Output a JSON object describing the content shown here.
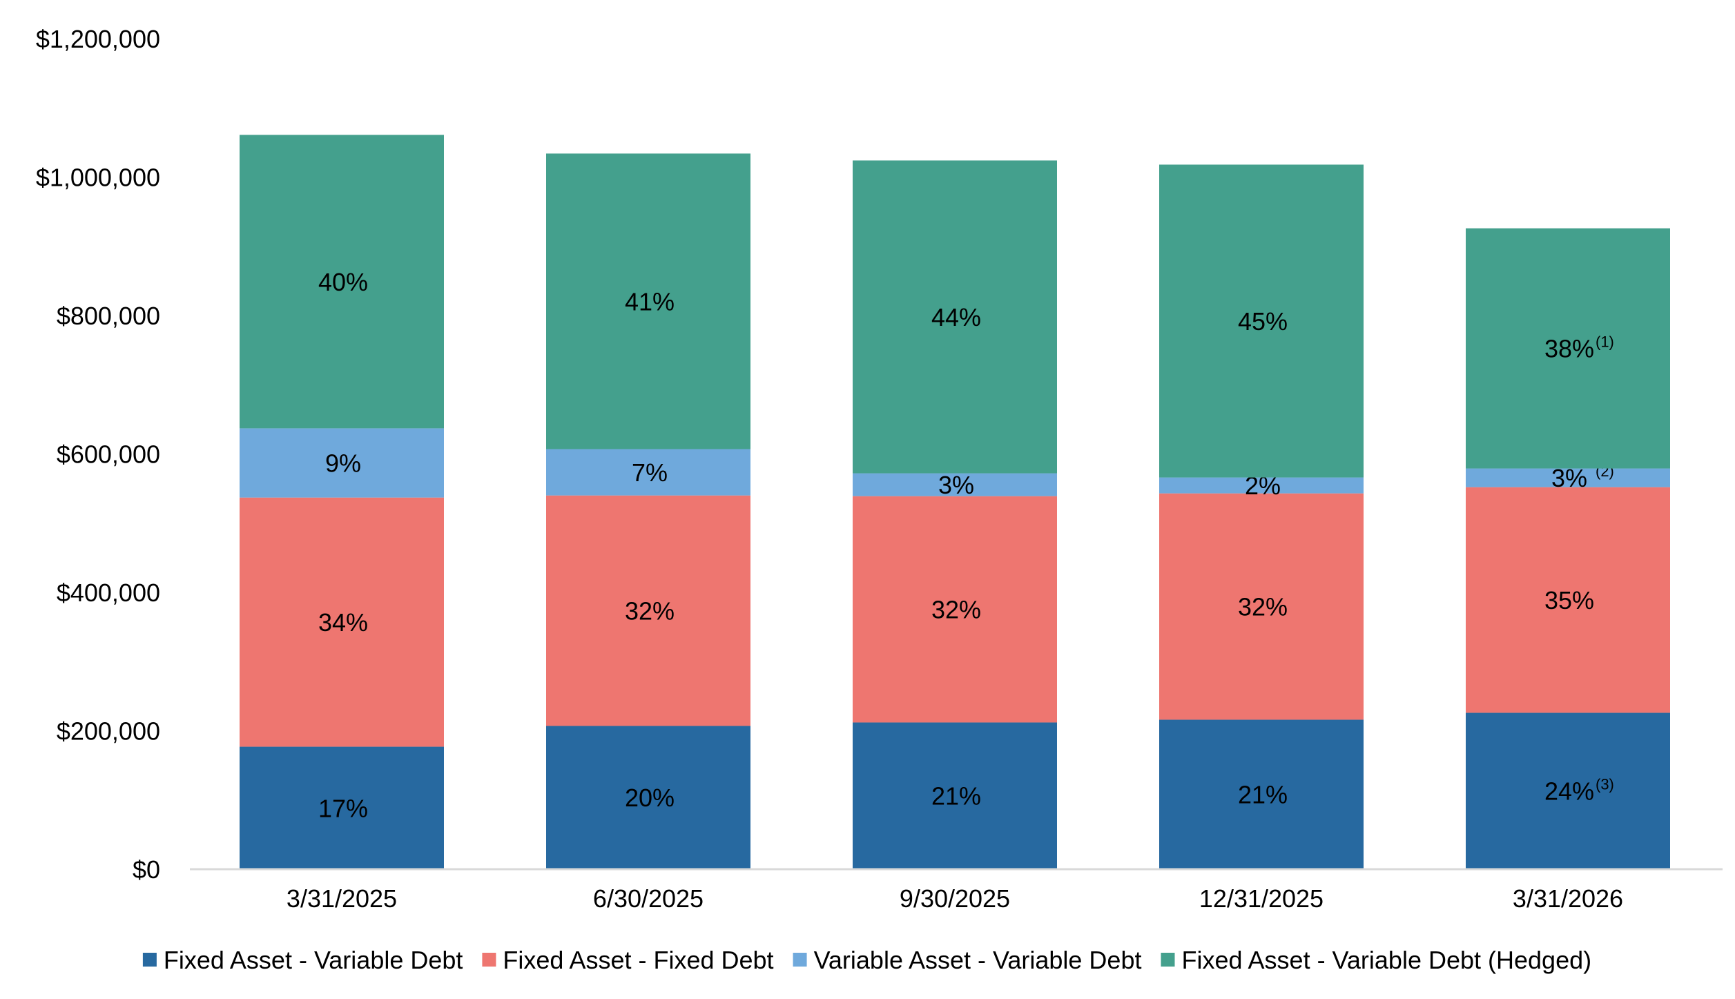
{
  "chart_data": {
    "type": "bar",
    "stacked": true,
    "categories": [
      "3/31/2025",
      "6/30/2025",
      "9/30/2025",
      "12/31/2025",
      "3/31/2026"
    ],
    "ylim": [
      0,
      1200000
    ],
    "yticks": [
      0,
      200000,
      400000,
      600000,
      800000,
      1000000,
      1200000
    ],
    "ytick_labels": [
      "$0",
      "$200,000",
      "$400,000",
      "$600,000",
      "$800,000",
      "$1,000,000",
      "$1,200,000"
    ],
    "grid": false,
    "legend_position": "bottom",
    "series": [
      {
        "name": "Fixed Asset - Variable Debt",
        "color": "#2769A0",
        "values": [
          177000,
          207000,
          212000,
          216000,
          226000
        ],
        "labels": [
          "17%",
          "20%",
          "21%",
          "21%",
          "24%"
        ],
        "footnotes": [
          "",
          "",
          "",
          "",
          "(3)"
        ]
      },
      {
        "name": "Fixed Asset - Fixed Debt",
        "color": "#EE7670",
        "values": [
          360000,
          333000,
          327000,
          327000,
          326000
        ],
        "labels": [
          "34%",
          "32%",
          "32%",
          "32%",
          "35%"
        ],
        "footnotes": [
          "",
          "",
          "",
          "",
          ""
        ]
      },
      {
        "name": "Variable Asset - Variable Debt",
        "color": "#6FA9DC",
        "values": [
          100000,
          67000,
          33000,
          23000,
          27000
        ],
        "labels": [
          "9%",
          "7%",
          "3%",
          "2%",
          "3%"
        ],
        "footnotes": [
          "",
          "",
          "",
          "",
          "(2)"
        ]
      },
      {
        "name": "Fixed Asset - Variable Debt (Hedged)",
        "color": "#44A08D",
        "values": [
          424000,
          427000,
          452000,
          452000,
          347000
        ],
        "labels": [
          "40%",
          "41%",
          "44%",
          "45%",
          "38%"
        ],
        "footnotes": [
          "",
          "",
          "",
          "",
          "(1)"
        ]
      }
    ]
  }
}
